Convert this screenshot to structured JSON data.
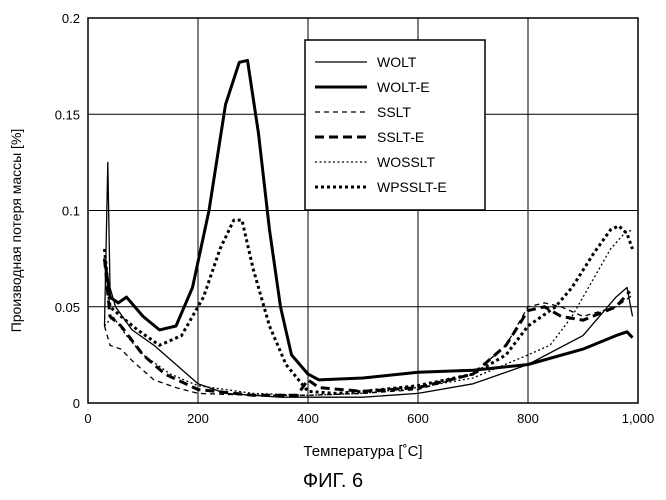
{
  "figure_caption": "ФИГ. 6",
  "chart_data": {
    "type": "line",
    "title": "",
    "xlabel": "Температура [˚C]",
    "ylabel": "Производная потеря массы [%]",
    "xlim": [
      0,
      1000
    ],
    "ylim": [
      0,
      0.2
    ],
    "x_ticks": [
      0,
      200,
      400,
      600,
      800,
      1000
    ],
    "x_tick_labels": [
      "0",
      "200",
      "400",
      "600",
      "800",
      "1,000"
    ],
    "y_ticks": [
      0,
      0.05,
      0.1,
      0.15,
      0.2
    ],
    "y_tick_labels": [
      "0",
      "0.05",
      "0.1",
      "0.15",
      "0.2"
    ],
    "grid": true,
    "legend_position": "top-center",
    "series": [
      {
        "name": "WOLT",
        "style": "solid",
        "weight": "thin",
        "points": [
          [
            30,
            0.04
          ],
          [
            36,
            0.125
          ],
          [
            40,
            0.06
          ],
          [
            50,
            0.05
          ],
          [
            80,
            0.038
          ],
          [
            120,
            0.03
          ],
          [
            160,
            0.02
          ],
          [
            200,
            0.01
          ],
          [
            250,
            0.005
          ],
          [
            300,
            0.004
          ],
          [
            350,
            0.003
          ],
          [
            400,
            0.003
          ],
          [
            500,
            0.003
          ],
          [
            600,
            0.005
          ],
          [
            700,
            0.01
          ],
          [
            800,
            0.02
          ],
          [
            900,
            0.035
          ],
          [
            960,
            0.055
          ],
          [
            980,
            0.06
          ],
          [
            990,
            0.045
          ]
        ]
      },
      {
        "name": "WOLT-E",
        "style": "solid",
        "weight": "thick",
        "points": [
          [
            30,
            0.075
          ],
          [
            40,
            0.055
          ],
          [
            55,
            0.052
          ],
          [
            70,
            0.055
          ],
          [
            100,
            0.045
          ],
          [
            130,
            0.038
          ],
          [
            160,
            0.04
          ],
          [
            190,
            0.06
          ],
          [
            220,
            0.1
          ],
          [
            250,
            0.155
          ],
          [
            275,
            0.177
          ],
          [
            290,
            0.178
          ],
          [
            310,
            0.14
          ],
          [
            330,
            0.09
          ],
          [
            350,
            0.05
          ],
          [
            370,
            0.025
          ],
          [
            400,
            0.015
          ],
          [
            420,
            0.012
          ],
          [
            500,
            0.013
          ],
          [
            600,
            0.016
          ],
          [
            700,
            0.017
          ],
          [
            800,
            0.02
          ],
          [
            900,
            0.028
          ],
          [
            960,
            0.035
          ],
          [
            980,
            0.037
          ],
          [
            990,
            0.034
          ]
        ]
      },
      {
        "name": "SSLT",
        "style": "dash-short",
        "weight": "thin",
        "points": [
          [
            30,
            0.04
          ],
          [
            40,
            0.03
          ],
          [
            60,
            0.028
          ],
          [
            80,
            0.022
          ],
          [
            120,
            0.012
          ],
          [
            160,
            0.008
          ],
          [
            200,
            0.005
          ],
          [
            300,
            0.004
          ],
          [
            400,
            0.004
          ],
          [
            500,
            0.005
          ],
          [
            600,
            0.007
          ],
          [
            700,
            0.015
          ],
          [
            760,
            0.03
          ],
          [
            800,
            0.05
          ],
          [
            830,
            0.052
          ],
          [
            860,
            0.05
          ],
          [
            900,
            0.045
          ],
          [
            960,
            0.05
          ],
          [
            990,
            0.056
          ]
        ]
      },
      {
        "name": "SSLT-E",
        "style": "dash-long",
        "weight": "thick",
        "points": [
          [
            30,
            0.075
          ],
          [
            40,
            0.045
          ],
          [
            60,
            0.04
          ],
          [
            100,
            0.025
          ],
          [
            140,
            0.015
          ],
          [
            200,
            0.007
          ],
          [
            300,
            0.004
          ],
          [
            380,
            0.004
          ],
          [
            400,
            0.012
          ],
          [
            420,
            0.008
          ],
          [
            500,
            0.006
          ],
          [
            600,
            0.008
          ],
          [
            700,
            0.015
          ],
          [
            760,
            0.03
          ],
          [
            800,
            0.048
          ],
          [
            830,
            0.05
          ],
          [
            860,
            0.045
          ],
          [
            900,
            0.043
          ],
          [
            960,
            0.05
          ],
          [
            985,
            0.058
          ]
        ]
      },
      {
        "name": "WOSSLT",
        "style": "dotted",
        "weight": "thin",
        "points": [
          [
            30,
            0.04
          ],
          [
            45,
            0.045
          ],
          [
            70,
            0.035
          ],
          [
            100,
            0.025
          ],
          [
            150,
            0.015
          ],
          [
            200,
            0.009
          ],
          [
            300,
            0.005
          ],
          [
            400,
            0.004
          ],
          [
            500,
            0.005
          ],
          [
            600,
            0.008
          ],
          [
            700,
            0.013
          ],
          [
            800,
            0.025
          ],
          [
            840,
            0.03
          ],
          [
            880,
            0.045
          ],
          [
            920,
            0.065
          ],
          [
            950,
            0.08
          ],
          [
            975,
            0.088
          ],
          [
            990,
            0.09
          ]
        ]
      },
      {
        "name": "WPSSLT-E",
        "style": "dotted",
        "weight": "thick",
        "points": [
          [
            30,
            0.08
          ],
          [
            40,
            0.05
          ],
          [
            60,
            0.045
          ],
          [
            90,
            0.038
          ],
          [
            130,
            0.03
          ],
          [
            170,
            0.035
          ],
          [
            210,
            0.055
          ],
          [
            240,
            0.08
          ],
          [
            265,
            0.095
          ],
          [
            280,
            0.095
          ],
          [
            300,
            0.07
          ],
          [
            330,
            0.04
          ],
          [
            360,
            0.02
          ],
          [
            400,
            0.006
          ],
          [
            450,
            0.005
          ],
          [
            500,
            0.006
          ],
          [
            600,
            0.009
          ],
          [
            700,
            0.015
          ],
          [
            760,
            0.025
          ],
          [
            800,
            0.04
          ],
          [
            850,
            0.05
          ],
          [
            880,
            0.06
          ],
          [
            920,
            0.078
          ],
          [
            950,
            0.09
          ],
          [
            965,
            0.092
          ],
          [
            980,
            0.088
          ],
          [
            990,
            0.08
          ]
        ]
      }
    ]
  }
}
